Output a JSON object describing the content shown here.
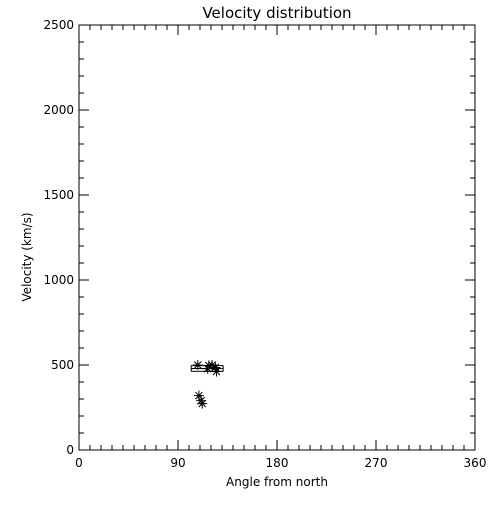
{
  "chart_data": {
    "type": "scatter",
    "title": "Velocity distribution",
    "xlabel": "Angle from north",
    "ylabel": "Velocity (km/s)",
    "xlim": [
      0,
      360
    ],
    "ylim": [
      0,
      2500
    ],
    "xticks": [
      0,
      90,
      180,
      270,
      360
    ],
    "yticks": [
      0,
      500,
      1000,
      1500,
      2000,
      2500
    ],
    "x_minor_step": 10,
    "y_minor_step": 100,
    "grid": false,
    "marker": "asterisk",
    "color": "#000000",
    "points": [
      {
        "x": 108,
        "y": 500
      },
      {
        "x": 118,
        "y": 497
      },
      {
        "x": 121,
        "y": 500
      },
      {
        "x": 117,
        "y": 478
      },
      {
        "x": 124,
        "y": 485
      },
      {
        "x": 125,
        "y": 462
      },
      {
        "x": 109,
        "y": 320
      },
      {
        "x": 111,
        "y": 290
      },
      {
        "x": 112,
        "y": 273
      }
    ],
    "box": {
      "x_min": 102,
      "x_max": 131,
      "x_median": 116,
      "y_min": 463,
      "y_max": 496
    }
  }
}
